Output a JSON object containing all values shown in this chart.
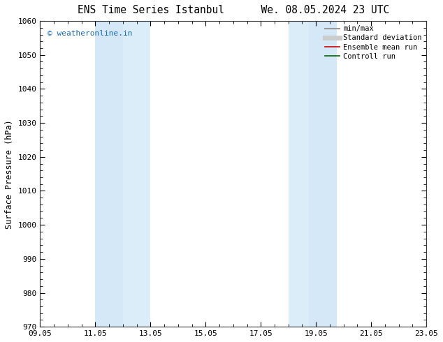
{
  "title_left": "ENS Time Series Istanbul",
  "title_right": "We. 08.05.2024 23 UTC",
  "ylabel": "Surface Pressure (hPa)",
  "ylim": [
    970,
    1060
  ],
  "yticks": [
    970,
    980,
    990,
    1000,
    1010,
    1020,
    1030,
    1040,
    1050,
    1060
  ],
  "xlim_start": 0.0,
  "xlim_end": 14.0,
  "xtick_positions": [
    0,
    2,
    4,
    6,
    8,
    10,
    12,
    14
  ],
  "xtick_labels": [
    "09.05",
    "11.05",
    "13.05",
    "15.05",
    "17.05",
    "19.05",
    "21.05",
    "23.05"
  ],
  "shade_bands": [
    {
      "xmin": 2.0,
      "xmax": 3.0,
      "color": "#d4e8f8"
    },
    {
      "xmin": 3.0,
      "xmax": 4.0,
      "color": "#daedf9"
    },
    {
      "xmin": 9.0,
      "xmax": 9.75,
      "color": "#daedf9"
    },
    {
      "xmin": 9.75,
      "xmax": 10.75,
      "color": "#d4e8f8"
    }
  ],
  "watermark_text": "© weatheronline.in",
  "watermark_color": "#1a6bbf",
  "legend_items": [
    {
      "label": "min/max",
      "color": "#999999",
      "lw": 1.5
    },
    {
      "label": "Standard deviation",
      "color": "#cccccc",
      "lw": 5
    },
    {
      "label": "Ensemble mean run",
      "color": "#cc0000",
      "lw": 1.2
    },
    {
      "label": "Controll run",
      "color": "#006600",
      "lw": 1.2
    }
  ],
  "bg_color": "#ffffff",
  "plot_bg_color": "#ffffff",
  "title_fontsize": 10.5,
  "axis_fontsize": 8.5,
  "tick_fontsize": 8,
  "legend_fontsize": 7.5
}
